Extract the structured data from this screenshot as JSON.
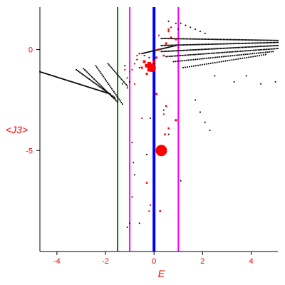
{
  "chart_data": {
    "type": "scatter",
    "title": "",
    "xlabel": "E",
    "ylabel": "<J3>",
    "xlim": [
      -4.7,
      5.1
    ],
    "ylim": [
      -10.0,
      2.1
    ],
    "grid": false,
    "x_ticks": [
      -4,
      -2,
      0,
      2,
      4
    ],
    "x_tick_labels": [
      "-4",
      "-2",
      "0",
      "2",
      "4"
    ],
    "y_ticks": [
      0,
      -5
    ],
    "y_tick_labels": [
      "0",
      "-5"
    ],
    "vertical_lines": [
      {
        "x": -1.5,
        "color": "#008000"
      },
      {
        "x": -1.0,
        "color": "#ff00ff"
      },
      {
        "x": 0.0,
        "color": "#0000ff"
      },
      {
        "x": 1.0,
        "color": "#ff00ff"
      }
    ],
    "colors": {
      "black_points": "#000000",
      "red_points": "#ff0000",
      "axes": "#000000",
      "labels": "#ff0000"
    },
    "bands": [
      {
        "x_start": -4.7,
        "x_end": -1.8,
        "y_start": -1.1,
        "y_end": -2.2,
        "count": 60
      },
      {
        "x_start": -3.2,
        "x_end": -1.6,
        "y_start": -1.0,
        "y_end": -2.4,
        "count": 34
      },
      {
        "x_start": -2.9,
        "x_end": -1.5,
        "y_start": -0.95,
        "y_end": -2.6,
        "count": 30
      },
      {
        "x_start": -2.4,
        "x_end": -1.3,
        "y_start": -0.8,
        "y_end": -2.7,
        "count": 26
      },
      {
        "x_start": -1.9,
        "x_end": -1.1,
        "y_start": -0.7,
        "y_end": -1.8,
        "count": 18
      },
      {
        "x_start": 0.3,
        "x_end": 5.1,
        "y_start": 0.55,
        "y_end": 0.45,
        "count": 80
      },
      {
        "x_start": 0.3,
        "x_end": 5.1,
        "y_start": 0.2,
        "y_end": 0.35,
        "count": 80
      },
      {
        "x_start": 0.3,
        "x_end": 5.1,
        "y_start": -0.1,
        "y_end": 0.2,
        "count": 80
      },
      {
        "x_start": 0.5,
        "x_end": 5.1,
        "y_start": -0.35,
        "y_end": 0.05,
        "count": 70
      },
      {
        "x_start": 0.8,
        "x_end": 4.9,
        "y_start": -0.6,
        "y_end": -0.1,
        "count": 55
      },
      {
        "x_start": 1.2,
        "x_end": 4.6,
        "y_start": -0.9,
        "y_end": -0.25,
        "count": 40
      },
      {
        "x_start": -0.5,
        "x_end": 0.9,
        "y_start": -0.2,
        "y_end": 0.2,
        "count": 28
      }
    ],
    "black_points": [
      [
        0.6,
        1.4
      ],
      [
        0.9,
        1.3
      ],
      [
        1.1,
        1.3
      ],
      [
        1.3,
        1.2
      ],
      [
        1.5,
        1.1
      ],
      [
        1.7,
        1.0
      ],
      [
        1.9,
        0.9
      ],
      [
        2.1,
        0.8
      ],
      [
        0.7,
        1.1
      ],
      [
        1.0,
        1.0
      ],
      [
        2.5,
        -1.3
      ],
      [
        3.3,
        -1.6
      ],
      [
        4.4,
        -1.7
      ],
      [
        5.0,
        -1.6
      ],
      [
        3.8,
        -1.3
      ],
      [
        1.7,
        -2.5
      ],
      [
        1.9,
        -3.1
      ],
      [
        2.1,
        -3.6
      ],
      [
        2.3,
        -4.0
      ],
      [
        -0.9,
        -4.6
      ],
      [
        -0.85,
        -5.6
      ],
      [
        -0.8,
        -6.2
      ],
      [
        -0.9,
        -7.3
      ],
      [
        -1.0,
        -8.6
      ],
      [
        -1.1,
        -8.8
      ],
      [
        -0.6,
        -8.6
      ],
      [
        1.1,
        -6.5
      ],
      [
        -0.15,
        -3.4
      ],
      [
        0.4,
        -3.0
      ],
      [
        0.6,
        -4.2
      ],
      [
        -0.3,
        -5.2
      ],
      [
        -1.3,
        -1.7
      ],
      [
        -1.1,
        -1.9
      ],
      [
        -1.0,
        -1.6
      ],
      [
        -0.7,
        -0.5
      ],
      [
        -0.4,
        -0.3
      ],
      [
        -0.2,
        -0.4
      ],
      [
        -0.6,
        -0.9
      ],
      [
        -1.2,
        -0.8
      ]
    ],
    "red_points": [
      {
        "x": 0.3,
        "y": -5.0,
        "size": 8
      },
      {
        "x": -0.2,
        "y": -0.7,
        "size": 5
      },
      {
        "x": -0.1,
        "y": -0.9,
        "size": 6
      },
      {
        "x": -0.3,
        "y": -0.8,
        "size": 5
      },
      {
        "x": -0.2,
        "y": -1.0,
        "size": 5
      },
      {
        "x": 0.0,
        "y": -0.6,
        "size": 4
      },
      {
        "x": -0.4,
        "y": -0.6,
        "size": 4
      },
      {
        "x": 0.1,
        "y": -0.4,
        "size": 3
      },
      {
        "x": -0.5,
        "y": -0.9,
        "size": 3
      },
      {
        "x": -0.3,
        "y": -1.2,
        "size": 3
      },
      {
        "x": 0.2,
        "y": 0.0,
        "size": 3
      },
      {
        "x": 0.5,
        "y": 0.3,
        "size": 3
      },
      {
        "x": 0.7,
        "y": 0.6,
        "size": 2.5
      },
      {
        "x": 0.6,
        "y": 0.9,
        "size": 2.5
      },
      {
        "x": 0.6,
        "y": 1.0,
        "size": 2.5
      },
      {
        "x": 0.9,
        "y": 0.5,
        "size": 2.5
      },
      {
        "x": 0.4,
        "y": -0.3,
        "size": 2.5
      },
      {
        "x": -0.6,
        "y": -0.2,
        "size": 2.5
      },
      {
        "x": -0.7,
        "y": -0.3,
        "size": 2
      },
      {
        "x": -0.8,
        "y": -0.7,
        "size": 2
      },
      {
        "x": -0.9,
        "y": -1.0,
        "size": 2
      },
      {
        "x": -1.0,
        "y": -1.1,
        "size": 2
      },
      {
        "x": -1.2,
        "y": -1.0,
        "size": 2
      },
      {
        "x": -1.1,
        "y": -1.4,
        "size": 2
      },
      {
        "x": -0.8,
        "y": -1.7,
        "size": 2
      },
      {
        "x": 0.8,
        "y": 0.2,
        "size": 2
      },
      {
        "x": 1.0,
        "y": 0.1,
        "size": 2
      },
      {
        "x": 0.2,
        "y": 0.7,
        "size": 2
      },
      {
        "x": 0.1,
        "y": -2.2,
        "size": 3
      },
      {
        "x": 0.5,
        "y": -2.8,
        "size": 2.5
      },
      {
        "x": 0.9,
        "y": -3.5,
        "size": 3
      },
      {
        "x": 0.6,
        "y": -3.9,
        "size": 2.5
      },
      {
        "x": 0.45,
        "y": -4.2,
        "size": 2.5
      },
      {
        "x": -0.3,
        "y": -6.6,
        "size": 2.5
      },
      {
        "x": -0.15,
        "y": -7.7,
        "size": 2
      },
      {
        "x": -0.2,
        "y": -8.0,
        "size": 2
      },
      {
        "x": 0.25,
        "y": -8.0,
        "size": 2.5
      },
      {
        "x": 0.4,
        "y": -3.2,
        "size": 2
      },
      {
        "x": -0.5,
        "y": -3.4,
        "size": 2
      }
    ]
  }
}
